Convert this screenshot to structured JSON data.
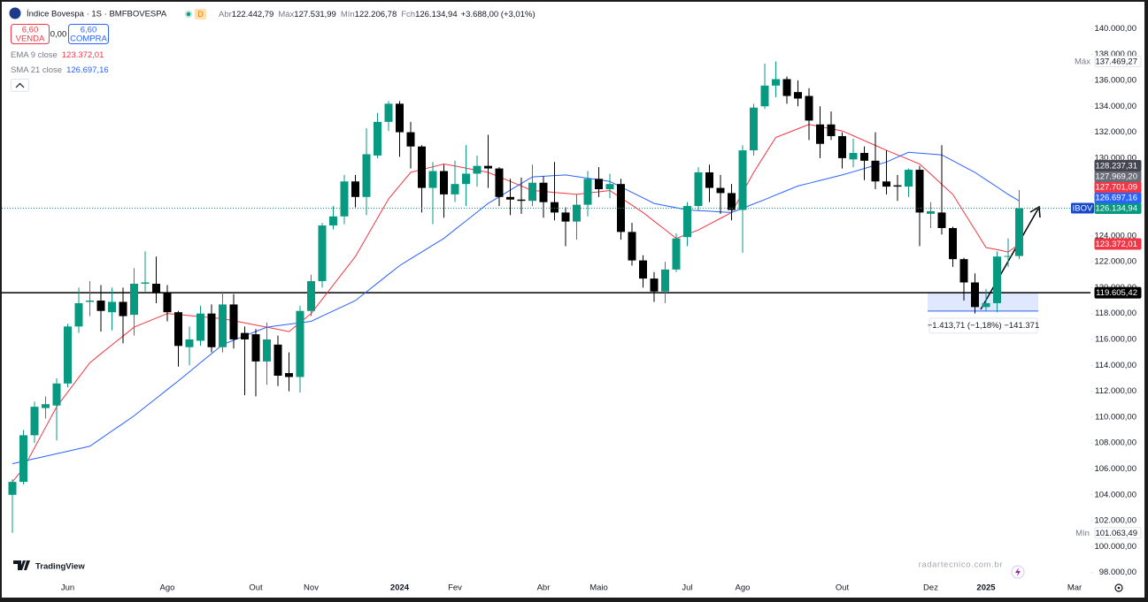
{
  "header": {
    "symbol": "Índice Bovespa · 1S · BMFBOVESPA",
    "badge": "D",
    "ohlc": [
      {
        "label": "Abr",
        "value": "122.442,79"
      },
      {
        "label": "Máx",
        "value": "127.531,99"
      },
      {
        "label": "Mín",
        "value": "122.206,78"
      },
      {
        "label": "Fch",
        "value": "126.134,94"
      }
    ],
    "change": "+3.688,00 (+3,01%)"
  },
  "trade": {
    "sell_price": "6,60",
    "sell": "VENDA",
    "spread": "0,00",
    "buy_price": "6,60",
    "buy": "COMPRA"
  },
  "branding": {
    "logo": "TradingView",
    "watermark": "radartecnico.com.br"
  },
  "chart_data": {
    "type": "candlestick",
    "grid": false,
    "categories": [
      null,
      null,
      null,
      null,
      null,
      "Jun",
      null,
      null,
      null,
      null,
      null,
      null,
      null,
      null,
      "Ago",
      null,
      null,
      null,
      null,
      null,
      null,
      null,
      "Out",
      null,
      null,
      null,
      null,
      "Nov",
      null,
      null,
      null,
      null,
      null,
      null,
      null,
      "2024",
      null,
      null,
      null,
      null,
      "Fev",
      null,
      null,
      null,
      null,
      null,
      null,
      null,
      "Abr",
      null,
      null,
      null,
      null,
      "Maio",
      null,
      null,
      null,
      null,
      null,
      null,
      null,
      "Jul",
      null,
      null,
      null,
      null,
      "Ago",
      null,
      null,
      null,
      null,
      null,
      null,
      null,
      null,
      "Out",
      null,
      null,
      null,
      null,
      null,
      null,
      null,
      "Dez",
      null,
      null,
      null,
      null,
      "2025",
      null,
      null,
      null,
      null,
      null,
      null,
      null,
      "Mar"
    ],
    "ylim": [
      97500,
      141800
    ],
    "yticks": [
      {
        "value": 140000,
        "label": "140.000,00"
      },
      {
        "value": 138000,
        "label": "138.000,00"
      },
      {
        "value": 136000,
        "label": "136.000,00"
      },
      {
        "value": 134000,
        "label": "134.000,00"
      },
      {
        "value": 132000,
        "label": "132.000,00"
      },
      {
        "value": 130000,
        "label": "130.000,00"
      },
      {
        "value": 124000,
        "label": "124.000,00"
      },
      {
        "value": 122000,
        "label": "122.000,00"
      },
      {
        "value": 120000,
        "label": "120.000,00"
      },
      {
        "value": 118000,
        "label": "118.000,00"
      },
      {
        "value": 116000,
        "label": "116.000,00"
      },
      {
        "value": 114000,
        "label": "114.000,00"
      },
      {
        "value": 112000,
        "label": "112.000,00"
      },
      {
        "value": 110000,
        "label": "110.000,00"
      },
      {
        "value": 108000,
        "label": "108.000,00"
      },
      {
        "value": 106000,
        "label": "106.000,00"
      },
      {
        "value": 104000,
        "label": "104.000,00"
      },
      {
        "value": 102000,
        "label": "102.000,00"
      },
      {
        "value": 100000,
        "label": "100.000,00"
      },
      {
        "value": 98000,
        "label": "98.000,00"
      }
    ],
    "series": [
      {
        "name": "IBOV",
        "type": "candlestick",
        "up_color": "#089981",
        "down_color": "#000000",
        "open": [
          104000,
          105000,
          108600,
          110700,
          110900,
          112600,
          117000,
          118900,
          119000,
          118100,
          118900,
          117900,
          120300,
          120300,
          119600,
          118100,
          115400,
          115900,
          118000,
          115400,
          118700,
          116500,
          116400,
          114300,
          115600,
          113400,
          113100,
          118200,
          120500,
          124800,
          125500,
          128200,
          127000,
          130200,
          132800,
          134200,
          132000,
          130900,
          127700,
          129000,
          127200,
          128000,
          128800,
          129400,
          129200,
          127000,
          126800,
          126700,
          128100,
          126600,
          125800,
          125100,
          126400,
          128400,
          127600,
          128000,
          124300,
          122100,
          120700,
          119700,
          121400,
          123900,
          126300,
          128900,
          127700,
          127300,
          126000,
          130600,
          134000,
          135600,
          136100,
          135100,
          134800,
          132600,
          132600,
          131700,
          129900,
          130400,
          129800,
          128200,
          127900,
          127800,
          129100,
          125700,
          125800,
          124600,
          122200,
          120400,
          118500,
          118800,
          122400,
          122442.79,
          null,
          null,
          null,
          null,
          null
        ],
        "high": [
          105200,
          109000,
          111200,
          111600,
          113000,
          117200,
          120000,
          120500,
          120200,
          120000,
          120000,
          121500,
          122800,
          122400,
          120200,
          118200,
          117000,
          118600,
          118700,
          119700,
          119500,
          117000,
          116800,
          117300,
          116300,
          115000,
          118600,
          121000,
          125000,
          126300,
          128700,
          128700,
          132300,
          133500,
          134400,
          134400,
          132800,
          131000,
          129700,
          129500,
          129800,
          131000,
          130200,
          131800,
          129300,
          128400,
          128500,
          129500,
          128600,
          129700,
          126200,
          127200,
          129000,
          129300,
          128800,
          128400,
          125000,
          122500,
          121200,
          122000,
          124200,
          126600,
          129300,
          129500,
          128700,
          128000,
          131000,
          134200,
          137300,
          137469.27,
          136300,
          136000,
          135400,
          134000,
          133600,
          132000,
          131500,
          130900,
          132000,
          130600,
          128700,
          129200,
          129400,
          126600,
          131000,
          124700,
          122300,
          121100,
          119900,
          122800,
          123800,
          127531.99,
          null,
          null,
          null,
          null,
          null
        ],
        "low": [
          101063.49,
          104800,
          108000,
          109900,
          108200,
          112300,
          116500,
          117800,
          116600,
          116700,
          115700,
          116300,
          119700,
          118800,
          117400,
          113900,
          114000,
          115500,
          115000,
          115000,
          115300,
          111700,
          111600,
          112500,
          112400,
          112000,
          111900,
          117800,
          120000,
          124500,
          124900,
          126200,
          125600,
          130000,
          132100,
          130100,
          129200,
          125800,
          124900,
          125400,
          126600,
          126300,
          127800,
          127700,
          126300,
          125600,
          125700,
          126300,
          125400,
          125200,
          123200,
          123700,
          125500,
          127000,
          126900,
          123700,
          121700,
          120000,
          118900,
          118800,
          121200,
          123200,
          125900,
          126600,
          125700,
          125200,
          122700,
          130200,
          133800,
          134700,
          134200,
          134000,
          131400,
          130000,
          131400,
          129200,
          129300,
          128300,
          127600,
          127200,
          126700,
          127000,
          123200,
          124600,
          124100,
          121600,
          119000,
          118000,
          118200,
          118100,
          121600,
          122206.78,
          null,
          null,
          null,
          null,
          null
        ],
        "close": [
          105000,
          108600,
          110800,
          111000,
          112600,
          117000,
          118800,
          119000,
          118200,
          118900,
          117800,
          120300,
          120400,
          119600,
          118100,
          115500,
          116000,
          118000,
          115400,
          118700,
          116000,
          116000,
          114300,
          116000,
          113200,
          113100,
          118200,
          120500,
          124800,
          125500,
          128200,
          127000,
          130300,
          132800,
          134200,
          132000,
          130900,
          127700,
          129000,
          127200,
          128000,
          128800,
          129400,
          129200,
          127000,
          126800,
          126700,
          128100,
          126600,
          125800,
          125100,
          126400,
          128400,
          127600,
          128000,
          124300,
          122100,
          120700,
          119700,
          121400,
          123800,
          126300,
          128900,
          127700,
          127300,
          126000,
          130600,
          133900,
          135600,
          136100,
          134800,
          134600,
          132900,
          131100,
          131700,
          130000,
          130400,
          129800,
          128200,
          127800,
          127800,
          129100,
          125800,
          125900,
          124600,
          122200,
          120400,
          118500,
          118800,
          122400,
          122446.94,
          126134.94,
          null,
          null,
          null,
          null,
          null
        ]
      },
      {
        "name": "EMA 9 close",
        "type": "line",
        "color": "#f23645",
        "value_label": "123.372,01",
        "values": [
          105000,
          106050,
          107630,
          109220,
          110800,
          111930,
          113070,
          114200,
          114890,
          115580,
          116260,
          116950,
          117300,
          117650,
          118000,
          117920,
          117840,
          117760,
          117680,
          117600,
          117440,
          117280,
          117110,
          116950,
          116780,
          116600,
          117300,
          118000,
          119100,
          120200,
          121300,
          122400,
          123880,
          125370,
          126850,
          127880,
          128900,
          129120,
          129330,
          129550,
          129390,
          129230,
          129060,
          128900,
          128550,
          128200,
          127850,
          127500,
          127430,
          127350,
          127280,
          127200,
          127300,
          127400,
          127500,
          126930,
          126370,
          125800,
          125130,
          124470,
          123800,
          124130,
          124450,
          124900,
          125350,
          125800,
          127350,
          128900,
          130250,
          131600,
          131930,
          132270,
          132600,
          132430,
          132270,
          132100,
          131730,
          131350,
          130980,
          130600,
          130250,
          129900,
          129550,
          128770,
          127980,
          127200,
          125830,
          124470,
          123100,
          122930,
          122750,
          123372.01,
          null,
          null,
          null,
          null,
          null
        ]
      },
      {
        "name": "SMA 21 close",
        "type": "line",
        "color": "#2962ff",
        "value_label": "126.697,16",
        "values": [
          106400,
          106590,
          106790,
          106980,
          107170,
          107360,
          107560,
          107750,
          108340,
          108930,
          109510,
          110100,
          110780,
          111450,
          112130,
          112800,
          113500,
          114200,
          114900,
          115600,
          115940,
          116280,
          116610,
          116950,
          117060,
          117180,
          117290,
          117400,
          117800,
          118200,
          118600,
          119000,
          119680,
          120350,
          121030,
          121700,
          122230,
          122750,
          123280,
          123800,
          124480,
          125150,
          125830,
          126500,
          127010,
          127530,
          128040,
          128550,
          128600,
          128650,
          128700,
          128580,
          128450,
          128330,
          128200,
          127780,
          127350,
          126930,
          126500,
          126330,
          126170,
          126000,
          125950,
          125900,
          125850,
          125800,
          126130,
          126470,
          126800,
          127150,
          127500,
          127850,
          128060,
          128280,
          128490,
          128700,
          128950,
          129200,
          129450,
          129700,
          130080,
          130450,
          130380,
          130320,
          130250,
          129800,
          129350,
          128900,
          128330,
          127770,
          127200,
          126697.16,
          null,
          null,
          null,
          null,
          null
        ]
      }
    ],
    "hline": {
      "value": 119605.42,
      "color": "#000000"
    },
    "measure": {
      "high": 119605.42,
      "low": 118191.71,
      "label": "−1.413,71 (−1,18%) −141.371",
      "color": "#2962ff"
    },
    "price_line": true,
    "price_labels": [
      {
        "value": 137469.27,
        "label": "137.469,27",
        "tag": "Máx",
        "color": "#ffffff",
        "text_color": "#131722",
        "tag_color": "#ffffff",
        "tag_text_color": "#787b86"
      },
      {
        "value": 128237.31,
        "label": "128.237,31",
        "color": "#434651",
        "text_color": "#ffffff"
      },
      {
        "value": 127969.2,
        "label": "127.969,20",
        "color": "#6a6d78",
        "text_color": "#ffffff"
      },
      {
        "value": 127701.09,
        "label": "127.701,09",
        "color": "#f23645",
        "text_color": "#ffffff"
      },
      {
        "value": 126697.16,
        "label": "126.697,16",
        "color": "#2962ff",
        "text_color": "#ffffff"
      },
      {
        "value": 126134.94,
        "label": "126.134,94",
        "tag": "IBOV",
        "color": "#089981",
        "text_color": "#ffffff",
        "tag_color": "#1848cc",
        "tag_text_color": "#ffffff"
      },
      {
        "value": 123372.01,
        "label": "123.372,01",
        "color": "#f23645",
        "text_color": "#ffffff"
      },
      {
        "value": 119605.42,
        "label": "119.605,42",
        "color": "#000000",
        "text_color": "#ffffff"
      },
      {
        "value": 101063.49,
        "label": "101.063,49",
        "tag": "Mín",
        "color": "#ffffff",
        "text_color": "#131722",
        "tag_color": "#ffffff",
        "tag_text_color": "#787b86"
      }
    ]
  }
}
